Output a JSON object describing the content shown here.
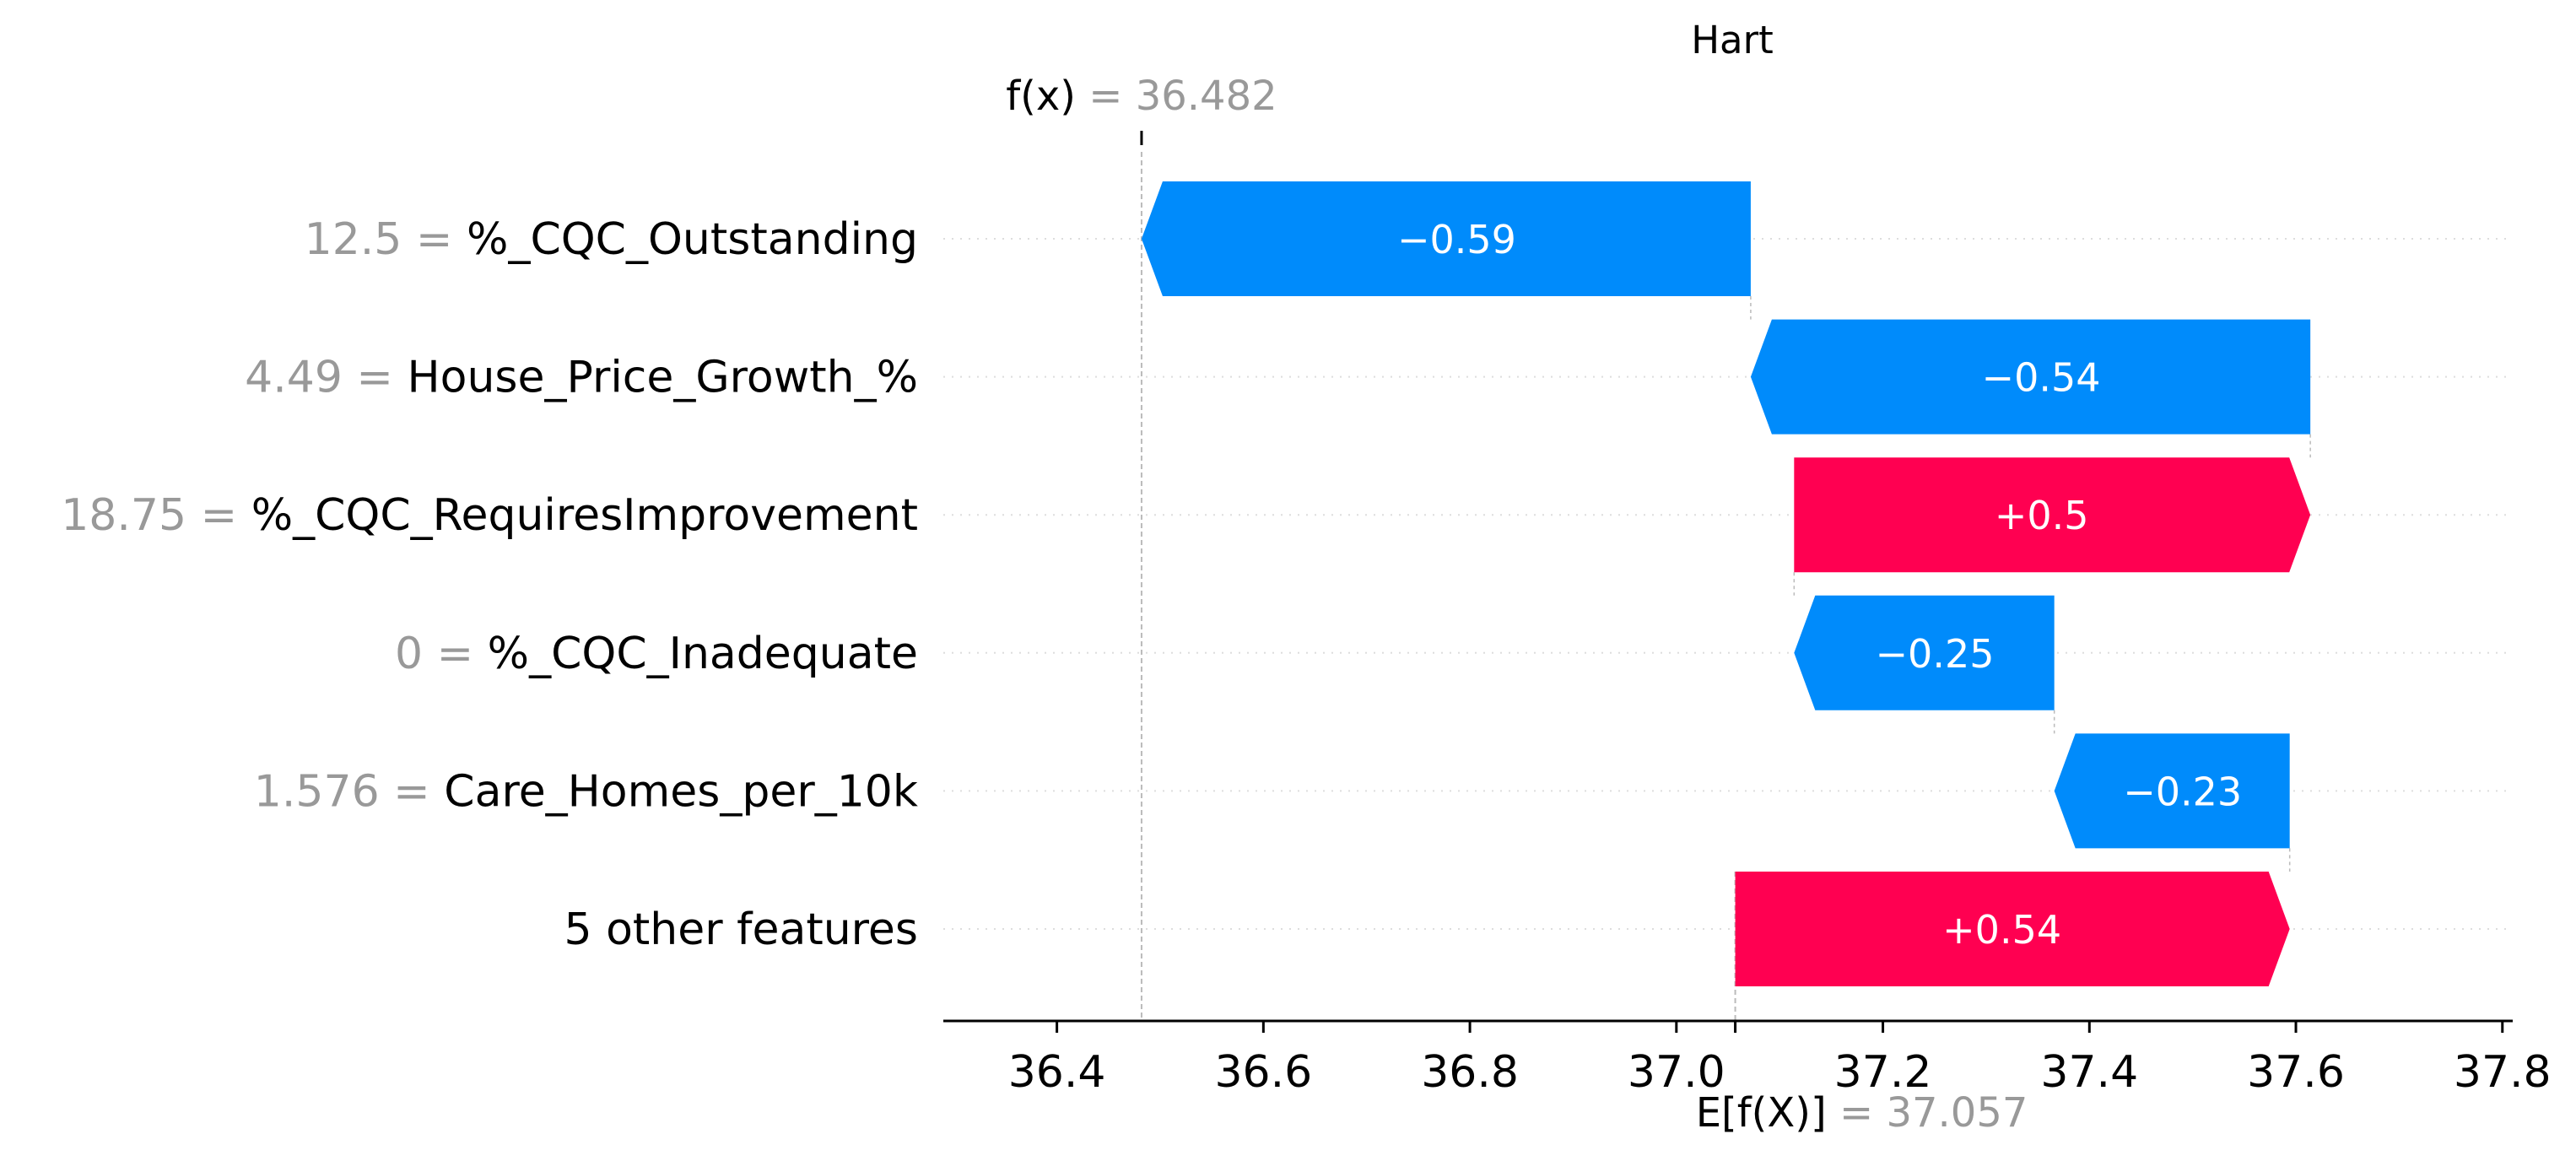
{
  "chart_data": {
    "type": "waterfall",
    "title": "Hart",
    "fx": {
      "label": "f(x)",
      "value": "36.482",
      "x": 36.482
    },
    "base": {
      "label": "E[f(X)]",
      "value": "37.057",
      "x": 37.057
    },
    "xlim": [
      36.29,
      37.81
    ],
    "xticks": [
      {
        "v": 36.4,
        "label": "36.4"
      },
      {
        "v": 36.6,
        "label": "36.6"
      },
      {
        "v": 36.8,
        "label": "36.8"
      },
      {
        "v": 37.0,
        "label": "37.0"
      },
      {
        "v": 37.2,
        "label": "37.2"
      },
      {
        "v": 37.4,
        "label": "37.4"
      },
      {
        "v": 37.6,
        "label": "37.6"
      },
      {
        "v": 37.8,
        "label": "37.8"
      }
    ],
    "rows": [
      {
        "value": "12.5",
        "feature": "%_CQC_Outstanding",
        "contribution": -0.59,
        "label": "−0.59",
        "start": 37.072,
        "end": 36.482
      },
      {
        "value": "4.49",
        "feature": "House_Price_Growth_%",
        "contribution": -0.54,
        "label": "−0.54",
        "start": 37.614,
        "end": 37.072
      },
      {
        "value": "18.75",
        "feature": "%_CQC_RequiresImprovement",
        "contribution": 0.5,
        "label": "+0.5",
        "start": 37.114,
        "end": 37.614
      },
      {
        "value": "0",
        "feature": "%_CQC_Inadequate",
        "contribution": -0.25,
        "label": "−0.25",
        "start": 37.366,
        "end": 37.114
      },
      {
        "value": "1.576",
        "feature": "Care_Homes_per_10k",
        "contribution": -0.23,
        "label": "−0.23",
        "start": 37.594,
        "end": 37.366
      },
      {
        "value": "",
        "feature": "5 other features",
        "contribution": 0.54,
        "label": "+0.54",
        "start": 37.057,
        "end": 37.594
      }
    ],
    "colors": {
      "positive": "#ff0051",
      "negative": "#008bfb",
      "muted": "#999999",
      "text": "#000000"
    }
  }
}
